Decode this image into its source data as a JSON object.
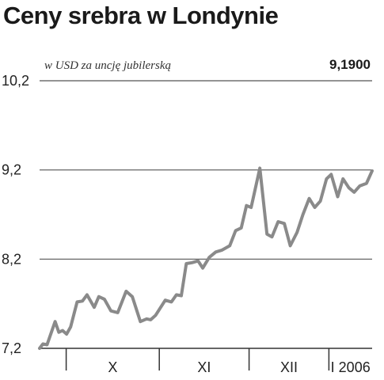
{
  "chart_data": {
    "type": "line",
    "title": "Ceny srebra w Londynie",
    "subtitle": "w USD za uncję jubilerską",
    "last_value_label": "9,1900",
    "ylim": [
      7.2,
      10.2
    ],
    "y_ticks": [
      {
        "value": 7.2,
        "label": "7,2"
      },
      {
        "value": 8.2,
        "label": "8,2"
      },
      {
        "value": 9.2,
        "label": "9,2"
      },
      {
        "value": 10.2,
        "label": "10,2"
      }
    ],
    "x_categories": [
      {
        "label": "X",
        "start": 0.08,
        "end": 0.36
      },
      {
        "label": "XI",
        "start": 0.36,
        "end": 0.63
      },
      {
        "label": "XII",
        "start": 0.63,
        "end": 0.87
      },
      {
        "label": "I 2006",
        "start": 0.87,
        "end": 1.0
      }
    ],
    "grid": "horizontal",
    "series": [
      {
        "color": "#8a8a8a",
        "points": [
          [
            0.0,
            7.2
          ],
          [
            0.011,
            7.25
          ],
          [
            0.024,
            7.24
          ],
          [
            0.05,
            7.5
          ],
          [
            0.062,
            7.38
          ],
          [
            0.074,
            7.4
          ],
          [
            0.087,
            7.36
          ],
          [
            0.1,
            7.44
          ],
          [
            0.121,
            7.72
          ],
          [
            0.138,
            7.73
          ],
          [
            0.153,
            7.8
          ],
          [
            0.176,
            7.66
          ],
          [
            0.191,
            7.78
          ],
          [
            0.209,
            7.75
          ],
          [
            0.23,
            7.62
          ],
          [
            0.252,
            7.6
          ],
          [
            0.279,
            7.84
          ],
          [
            0.299,
            7.78
          ],
          [
            0.325,
            7.5
          ],
          [
            0.345,
            7.53
          ],
          [
            0.358,
            7.52
          ],
          [
            0.374,
            7.57
          ],
          [
            0.405,
            7.74
          ],
          [
            0.425,
            7.72
          ],
          [
            0.441,
            7.8
          ],
          [
            0.457,
            7.79
          ],
          [
            0.473,
            8.15
          ],
          [
            0.491,
            8.16
          ],
          [
            0.511,
            8.18
          ],
          [
            0.526,
            8.1
          ],
          [
            0.547,
            8.22
          ],
          [
            0.568,
            8.28
          ],
          [
            0.587,
            8.3
          ],
          [
            0.613,
            8.35
          ],
          [
            0.632,
            8.52
          ],
          [
            0.65,
            8.55
          ],
          [
            0.667,
            8.8
          ],
          [
            0.682,
            8.78
          ],
          [
            0.71,
            9.22
          ],
          [
            0.733,
            8.48
          ],
          [
            0.749,
            8.45
          ],
          [
            0.769,
            8.62
          ],
          [
            0.789,
            8.6
          ],
          [
            0.808,
            8.35
          ],
          [
            0.83,
            8.5
          ],
          [
            0.849,
            8.7
          ],
          [
            0.869,
            8.88
          ],
          [
            0.887,
            8.78
          ],
          [
            0.905,
            8.85
          ],
          [
            0.925,
            9.1
          ],
          [
            0.94,
            9.15
          ],
          [
            0.961,
            8.9
          ],
          [
            0.978,
            9.1
          ],
          [
            0.997,
            9.0
          ],
          [
            1.014,
            8.95
          ],
          [
            1.032,
            9.02
          ],
          [
            1.054,
            9.05
          ],
          [
            1.072,
            9.19
          ]
        ]
      }
    ]
  }
}
